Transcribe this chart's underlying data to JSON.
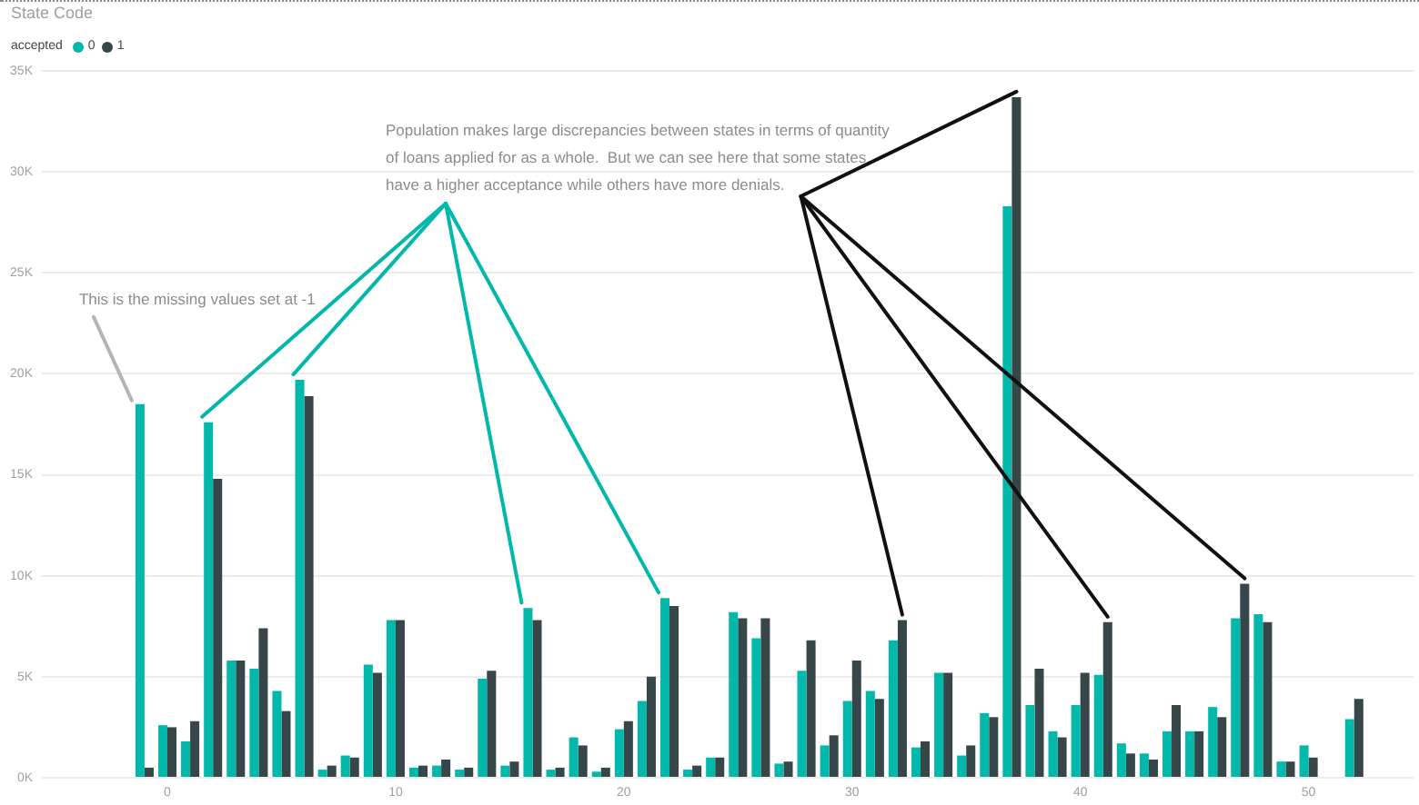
{
  "chart_data": {
    "type": "bar",
    "title": "State Code",
    "legend_title": "accepted",
    "legend": "top left",
    "grid": "y",
    "x": [
      -1,
      0,
      1,
      2,
      3,
      4,
      5,
      6,
      7,
      8,
      9,
      10,
      11,
      12,
      13,
      14,
      15,
      16,
      17,
      18,
      19,
      20,
      21,
      22,
      23,
      24,
      25,
      26,
      27,
      28,
      29,
      30,
      31,
      32,
      33,
      34,
      35,
      36,
      37,
      38,
      39,
      40,
      41,
      42,
      43,
      44,
      45,
      46,
      47,
      48,
      49,
      50,
      52
    ],
    "series": [
      {
        "name": "0",
        "color": "#01b8aa",
        "values": [
          18500,
          2600,
          1800,
          17600,
          5800,
          5400,
          4300,
          19700,
          400,
          1100,
          5600,
          7800,
          500,
          600,
          400,
          4900,
          600,
          8400,
          400,
          2000,
          300,
          2400,
          3800,
          8900,
          400,
          1000,
          8200,
          6900,
          700,
          5300,
          1600,
          3800,
          4300,
          6800,
          1500,
          5200,
          1100,
          3200,
          28300,
          3600,
          2300,
          3600,
          5100,
          1700,
          1200,
          2300,
          2300,
          3500,
          7900,
          8100,
          800,
          1600,
          2900
        ]
      },
      {
        "name": "1",
        "color": "#374649",
        "values": [
          500,
          2500,
          2800,
          14800,
          5800,
          7400,
          3300,
          18900,
          600,
          1000,
          5200,
          7800,
          600,
          900,
          500,
          5300,
          800,
          7800,
          500,
          1600,
          500,
          2800,
          5000,
          8500,
          600,
          1000,
          7900,
          7900,
          800,
          6800,
          2100,
          5800,
          3900,
          7800,
          1800,
          5200,
          1600,
          3000,
          33700,
          5400,
          2000,
          5200,
          7700,
          1200,
          900,
          3600,
          2300,
          3000,
          9600,
          7700,
          800,
          1000,
          3900
        ]
      }
    ],
    "xlim": [
      -5.5,
      54.6
    ],
    "xticks": [
      0,
      10,
      20,
      30,
      40,
      50
    ],
    "ylim": [
      0,
      35000
    ],
    "yticks": [
      {
        "value": 0,
        "label": "0K"
      },
      {
        "value": 5000,
        "label": "5K"
      },
      {
        "value": 10000,
        "label": "10K"
      },
      {
        "value": 15000,
        "label": "15K"
      },
      {
        "value": 20000,
        "label": "20K"
      },
      {
        "value": 25000,
        "label": "25K"
      },
      {
        "value": 30000,
        "label": "30K"
      },
      {
        "value": 35000,
        "label": "35K"
      }
    ],
    "annotations": [
      {
        "text": "This is the missing values set at -1",
        "x": -1,
        "y": 18500
      },
      {
        "text": "Population makes large discrepancies between states in terms of quantity of loans applied for as a whole.  But we can see here that some states have a higher acceptance while others have more denials.",
        "x": 37,
        "y": 33700
      }
    ]
  }
}
